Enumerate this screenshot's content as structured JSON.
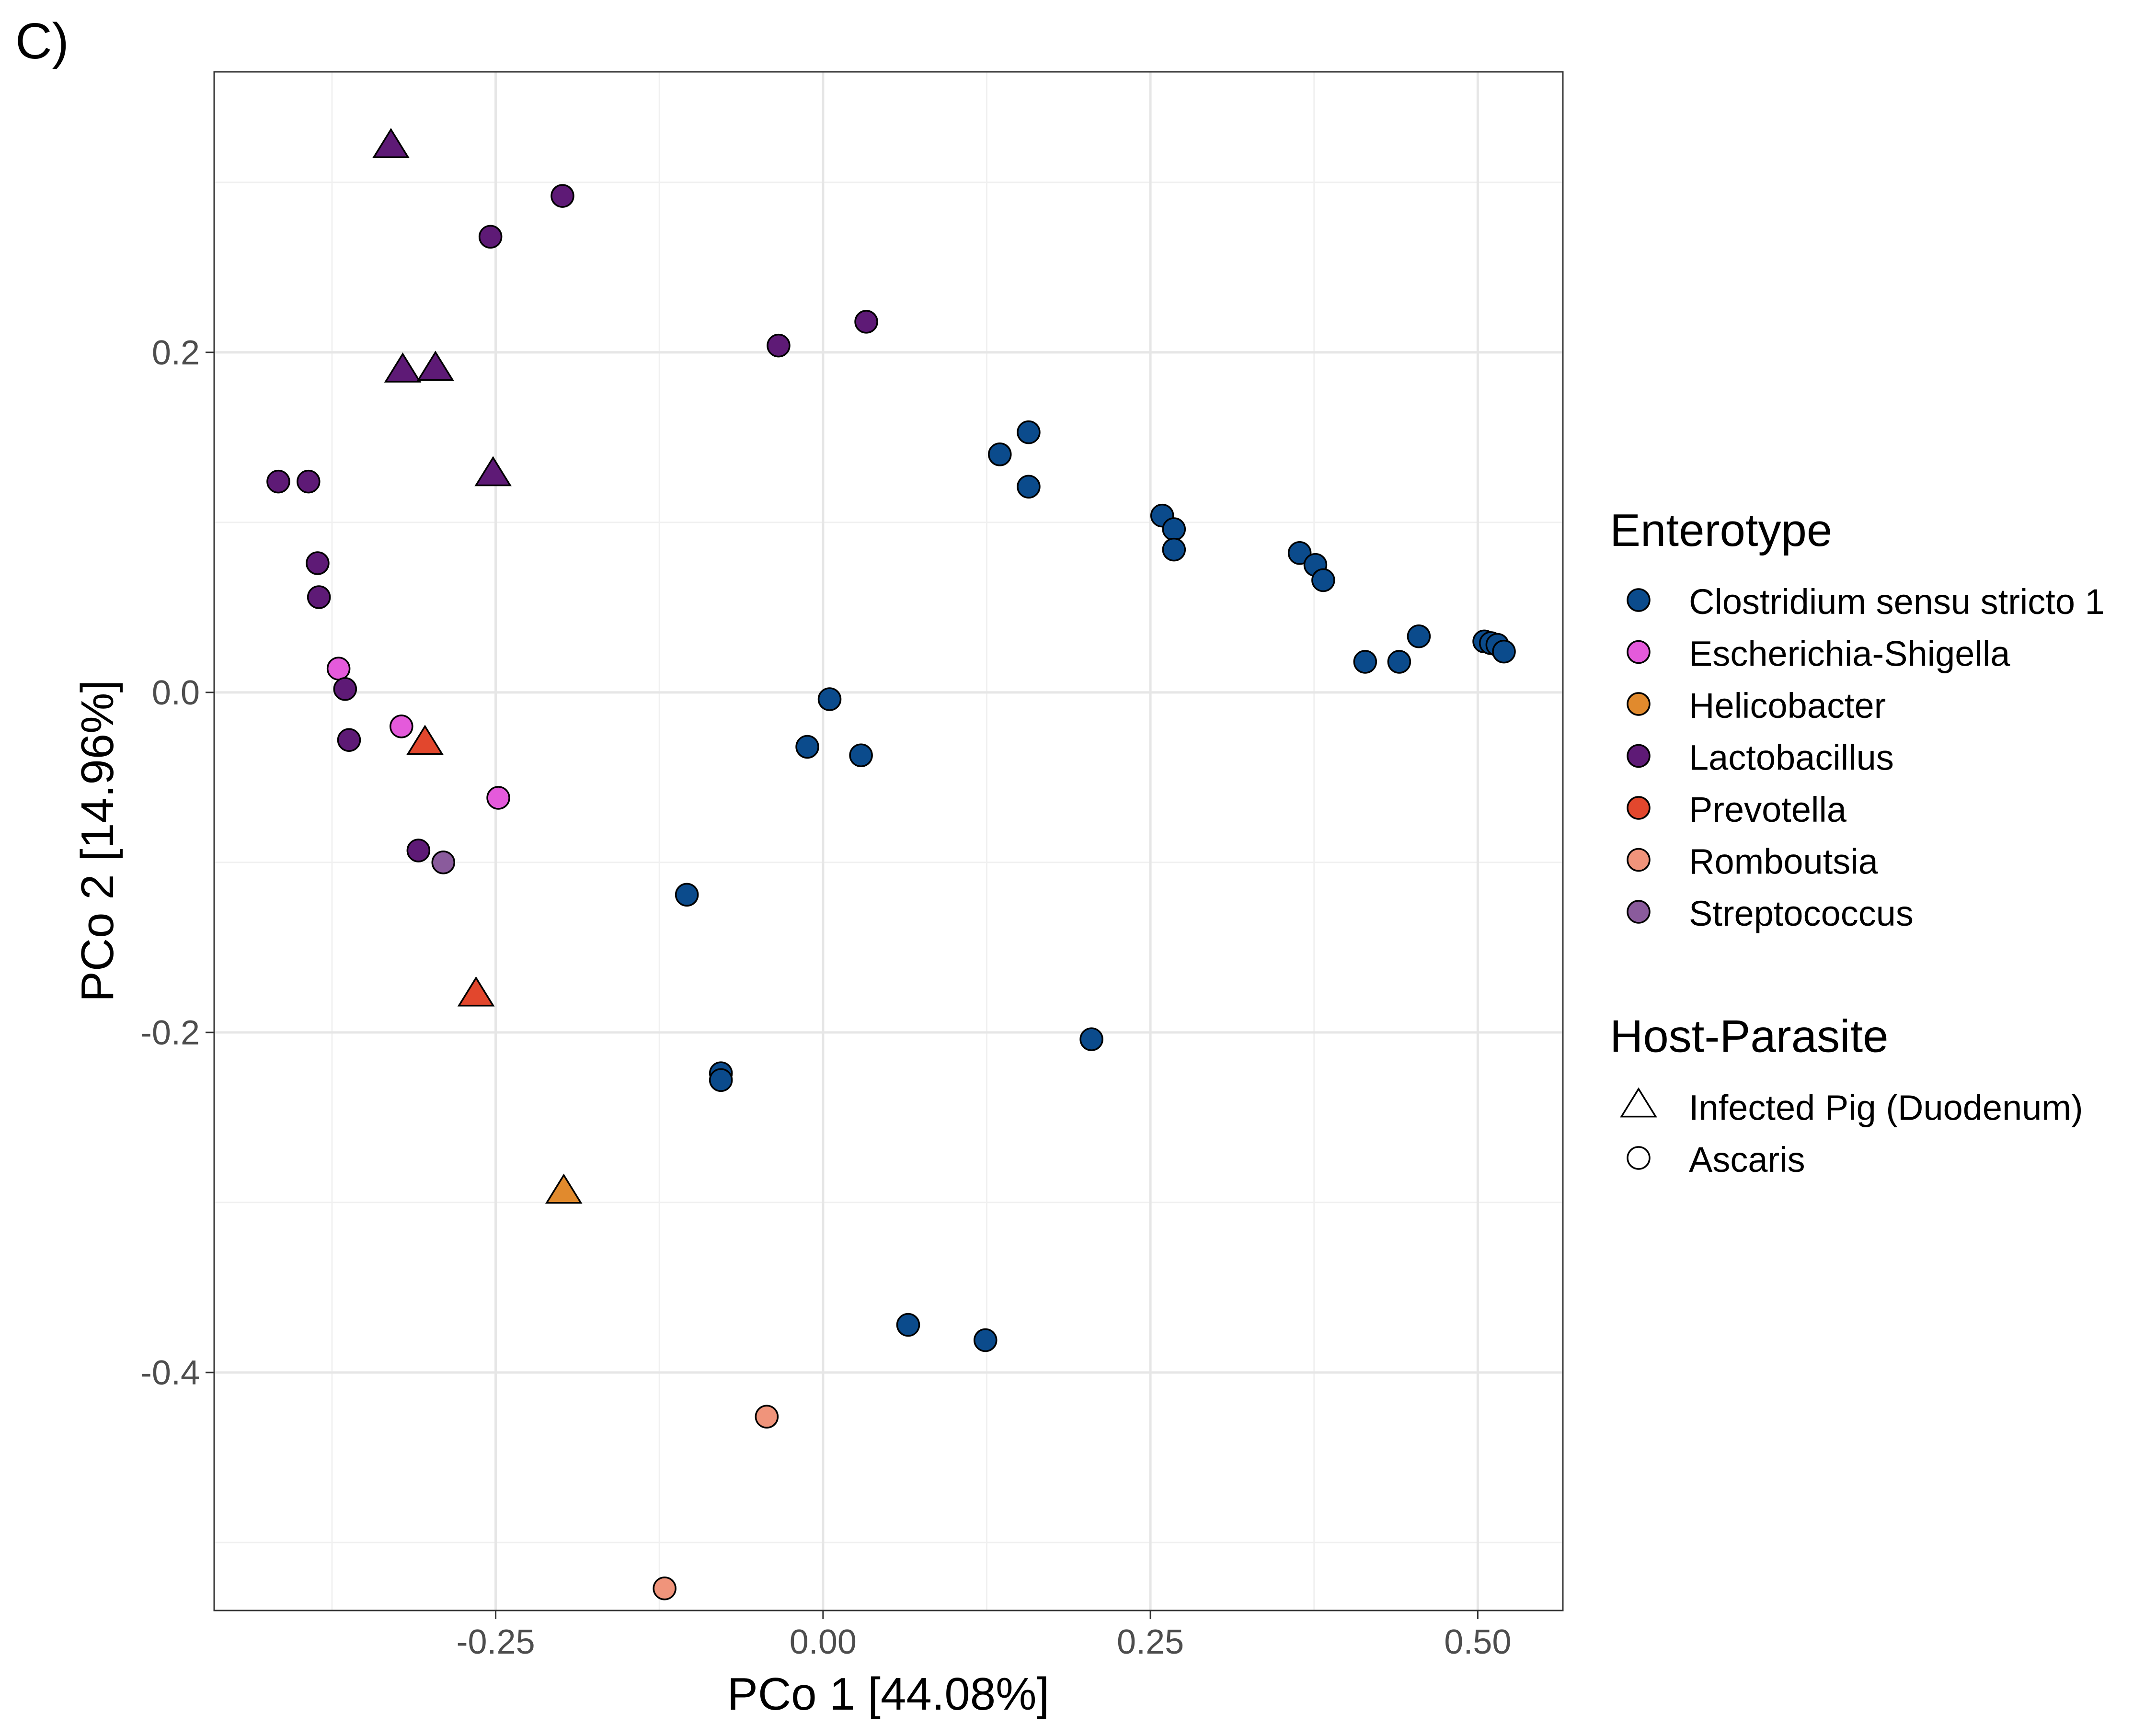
{
  "panel_label": "C)",
  "chart_data": {
    "type": "scatter",
    "xlabel": "PCo 1 [44.08%]",
    "ylabel": "PCo 2 [14.96%]",
    "xlim": [
      -0.465,
      0.565
    ],
    "ylim": [
      -0.54,
      0.365
    ],
    "x_ticks": [
      -0.25,
      0.0,
      0.25,
      0.5
    ],
    "x_tick_labels": [
      "-0.25",
      "0.00",
      "0.25",
      "0.50"
    ],
    "y_ticks": [
      -0.4,
      -0.2,
      0.0,
      0.2
    ],
    "y_tick_labels": [
      "-0.4",
      "-0.2",
      "0.0",
      "0.2"
    ],
    "grid": true,
    "legend_position": "right",
    "legends": [
      {
        "title": "Enterotype",
        "kind": "color",
        "entries": [
          {
            "label": "Clostridium sensu stricto 1",
            "color": "#0b4b8c"
          },
          {
            "label": "Escherichia-Shigella",
            "color": "#e45adb"
          },
          {
            "label": "Helicobacter",
            "color": "#e18a2d"
          },
          {
            "label": "Lactobacillus",
            "color": "#5e1a76"
          },
          {
            "label": "Prevotella",
            "color": "#e2472d"
          },
          {
            "label": "Romboutsia",
            "color": "#f0947b"
          },
          {
            "label": "Streptococcus",
            "color": "#8a5b9c"
          }
        ]
      },
      {
        "title": "Host-Parasite",
        "kind": "shape",
        "entries": [
          {
            "label": "Infected Pig (Duodenum)",
            "shape": "triangle"
          },
          {
            "label": "Ascaris",
            "shape": "circle"
          }
        ]
      }
    ],
    "series": [
      {
        "name": "Clostridium sensu stricto 1",
        "shape": "circle",
        "points": [
          [
            0.135,
            0.14
          ],
          [
            0.157,
            0.153
          ],
          [
            0.157,
            0.121
          ],
          [
            0.259,
            0.104
          ],
          [
            0.268,
            0.096
          ],
          [
            0.268,
            0.084
          ],
          [
            0.364,
            0.082
          ],
          [
            0.376,
            0.075
          ],
          [
            0.382,
            0.066
          ],
          [
            0.414,
            0.018
          ],
          [
            0.44,
            0.018
          ],
          [
            0.455,
            0.033
          ],
          [
            0.505,
            0.03
          ],
          [
            0.51,
            0.029
          ],
          [
            0.515,
            0.028
          ],
          [
            0.52,
            0.024
          ],
          [
            0.005,
            -0.004
          ],
          [
            -0.012,
            -0.032
          ],
          [
            0.029,
            -0.037
          ],
          [
            -0.104,
            -0.119
          ],
          [
            -0.078,
            -0.224
          ],
          [
            -0.078,
            -0.228
          ],
          [
            0.205,
            -0.204
          ],
          [
            0.065,
            -0.372
          ],
          [
            0.124,
            -0.381
          ]
        ]
      },
      {
        "name": "Escherichia-Shigella",
        "shape": "circle",
        "points": [
          [
            -0.37,
            0.014
          ],
          [
            -0.322,
            -0.02
          ],
          [
            -0.248,
            -0.062
          ]
        ]
      },
      {
        "name": "Helicobacter",
        "shape": "triangle",
        "points": [
          [
            -0.198,
            -0.294
          ]
        ]
      },
      {
        "name": "Lactobacillus",
        "shape": "triangle",
        "points": [
          [
            -0.33,
            0.321
          ],
          [
            -0.321,
            0.189
          ],
          [
            -0.296,
            0.19
          ],
          [
            -0.252,
            0.128
          ]
        ]
      },
      {
        "name": "Lactobacillus",
        "shape": "circle",
        "points": [
          [
            -0.199,
            0.292
          ],
          [
            -0.254,
            0.268
          ],
          [
            -0.034,
            0.204
          ],
          [
            0.033,
            0.218
          ],
          [
            -0.416,
            0.124
          ],
          [
            -0.393,
            0.124
          ],
          [
            -0.386,
            0.076
          ],
          [
            -0.385,
            0.056
          ],
          [
            -0.365,
            0.002
          ],
          [
            -0.362,
            -0.028
          ],
          [
            -0.309,
            -0.093
          ]
        ]
      },
      {
        "name": "Prevotella",
        "shape": "triangle",
        "points": [
          [
            -0.304,
            -0.03
          ],
          [
            -0.265,
            -0.178
          ]
        ]
      },
      {
        "name": "Romboutsia",
        "shape": "circle",
        "points": [
          [
            -0.043,
            -0.426
          ],
          [
            -0.121,
            -0.527
          ]
        ]
      },
      {
        "name": "Streptococcus",
        "shape": "circle",
        "points": [
          [
            -0.29,
            -0.1
          ]
        ]
      }
    ]
  }
}
